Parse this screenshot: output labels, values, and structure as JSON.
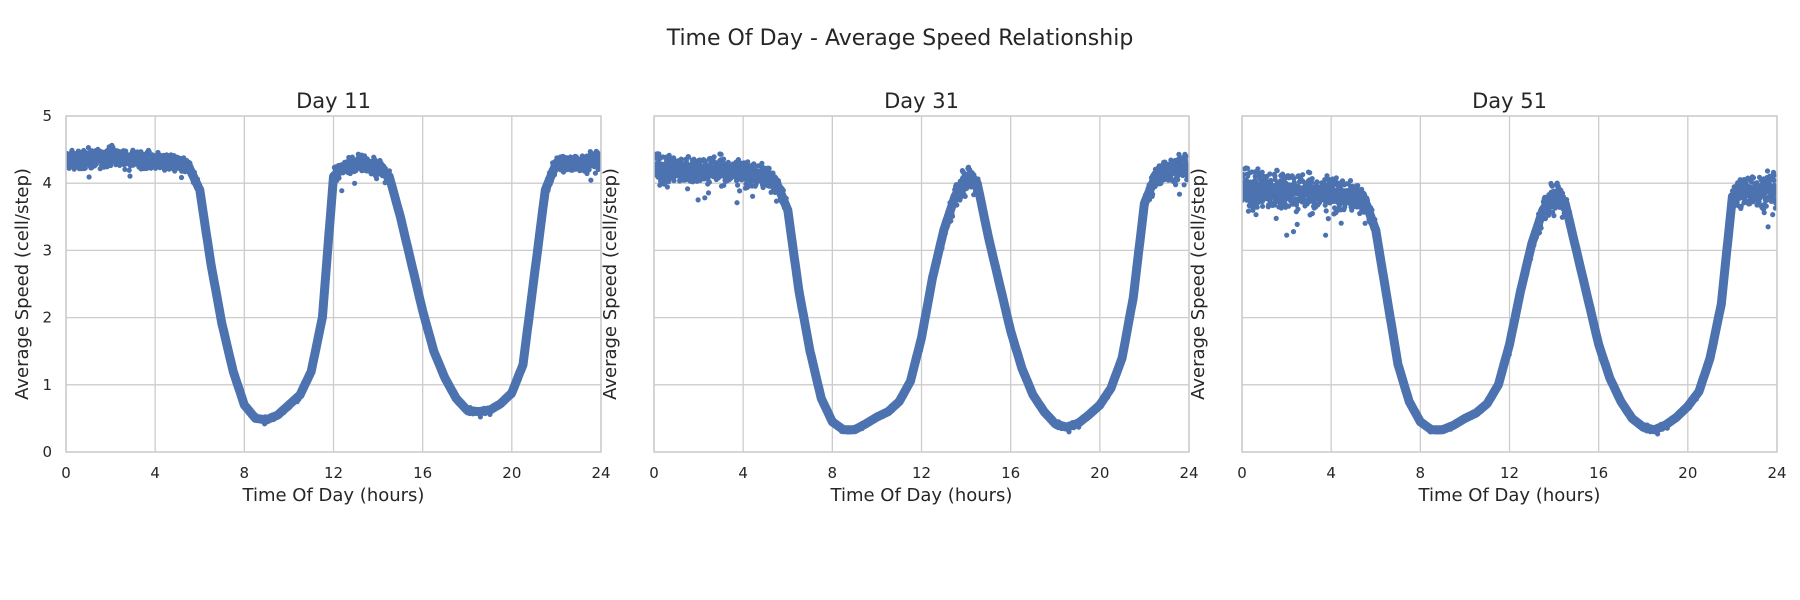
{
  "suptitle": "Time Of Day - Average Speed Relationship",
  "colors": {
    "series": "#4c72b0",
    "grid": "#cccccc",
    "text": "#262626",
    "background": "#ffffff"
  },
  "chart_data": [
    {
      "type": "scatter",
      "title": "Day 11",
      "xlabel": "Time Of Day (hours)",
      "ylabel": "Average Speed (cell/step)",
      "xlim": [
        0,
        24
      ],
      "ylim": [
        0,
        5
      ],
      "xticks": [
        "0",
        "4",
        "8",
        "12",
        "16",
        "20",
        "24"
      ],
      "yticks": [
        "0",
        "1",
        "2",
        "3",
        "4",
        "5"
      ],
      "show_ytick_labels": true,
      "grid": true,
      "series": [
        {
          "x": [
            0,
            1,
            2,
            3,
            4,
            5,
            5.5,
            6,
            6.5,
            7,
            7.5,
            8,
            8.5,
            9,
            9.5,
            10,
            10.5,
            11,
            11.5,
            12,
            12.5,
            13,
            14,
            14.5,
            15,
            15.5,
            16,
            16.5,
            17,
            17.5,
            18,
            18.5,
            19,
            19.5,
            20,
            20.5,
            21,
            21.5,
            22,
            23,
            24
          ],
          "y": [
            4.35,
            4.35,
            4.4,
            4.35,
            4.35,
            4.3,
            4.25,
            3.9,
            2.8,
            1.9,
            1.2,
            0.7,
            0.5,
            0.48,
            0.55,
            0.7,
            0.85,
            1.2,
            2.0,
            4.1,
            4.25,
            4.3,
            4.25,
            4.1,
            3.5,
            2.8,
            2.1,
            1.5,
            1.1,
            0.8,
            0.62,
            0.6,
            0.62,
            0.72,
            0.88,
            1.3,
            2.6,
            3.9,
            4.3,
            4.3,
            4.35
          ],
          "spread": [
            0.18,
            0.2,
            0.2,
            0.18,
            0.18,
            0.15,
            0.15,
            0.12,
            0.1,
            0.08,
            0.06,
            0.05,
            0.05,
            0.05,
            0.05,
            0.05,
            0.06,
            0.08,
            0.1,
            0.15,
            0.17,
            0.17,
            0.17,
            0.15,
            0.1,
            0.08,
            0.08,
            0.06,
            0.06,
            0.05,
            0.05,
            0.05,
            0.05,
            0.05,
            0.06,
            0.08,
            0.1,
            0.15,
            0.18,
            0.18,
            0.18
          ]
        }
      ]
    },
    {
      "type": "scatter",
      "title": "Day 31",
      "xlabel": "Time Of Day (hours)",
      "ylabel": "Average Speed (cell/step)",
      "xlim": [
        0,
        24
      ],
      "ylim": [
        0,
        5
      ],
      "xticks": [
        "0",
        "4",
        "8",
        "12",
        "16",
        "20",
        "24"
      ],
      "yticks": [
        "0",
        "1",
        "2",
        "3",
        "4",
        "5"
      ],
      "show_ytick_labels": false,
      "grid": true,
      "series": [
        {
          "x": [
            0,
            1,
            2,
            3,
            4,
            5,
            5.5,
            6,
            6.5,
            7,
            7.5,
            8,
            8.5,
            9,
            9.5,
            10,
            10.5,
            11,
            11.5,
            12,
            12.5,
            13,
            13.5,
            14,
            14.5,
            15,
            15.5,
            16,
            16.5,
            17,
            17.5,
            18,
            18.5,
            19,
            19.5,
            20,
            20.5,
            21,
            21.5,
            22,
            22.5,
            23,
            24
          ],
          "y": [
            4.2,
            4.2,
            4.2,
            4.2,
            4.15,
            4.1,
            4.0,
            3.6,
            2.4,
            1.5,
            0.8,
            0.45,
            0.33,
            0.33,
            0.42,
            0.52,
            0.6,
            0.75,
            1.05,
            1.7,
            2.6,
            3.3,
            3.8,
            4.1,
            4.0,
            3.2,
            2.5,
            1.8,
            1.25,
            0.85,
            0.6,
            0.42,
            0.37,
            0.42,
            0.55,
            0.7,
            0.95,
            1.4,
            2.3,
            3.7,
            4.1,
            4.2,
            4.25
          ],
          "spread": [
            0.3,
            0.3,
            0.3,
            0.3,
            0.25,
            0.25,
            0.2,
            0.15,
            0.1,
            0.08,
            0.06,
            0.05,
            0.05,
            0.05,
            0.05,
            0.05,
            0.05,
            0.06,
            0.08,
            0.1,
            0.15,
            0.2,
            0.25,
            0.25,
            0.2,
            0.1,
            0.08,
            0.08,
            0.06,
            0.05,
            0.05,
            0.05,
            0.05,
            0.05,
            0.05,
            0.05,
            0.06,
            0.08,
            0.1,
            0.2,
            0.25,
            0.25,
            0.25
          ]
        }
      ]
    },
    {
      "type": "scatter",
      "title": "Day 51",
      "xlabel": "Time Of Day (hours)",
      "ylabel": "Average Speed (cell/step)",
      "xlim": [
        0,
        24
      ],
      "ylim": [
        0,
        5
      ],
      "xticks": [
        "0",
        "4",
        "8",
        "12",
        "16",
        "20",
        "24"
      ],
      "yticks": [
        "0",
        "1",
        "2",
        "3",
        "4",
        "5"
      ],
      "show_ytick_labels": false,
      "grid": true,
      "series": [
        {
          "x": [
            0,
            1,
            2,
            3,
            4,
            5,
            5.5,
            6,
            6.5,
            7,
            7.5,
            8,
            8.5,
            9,
            9.5,
            10,
            10.5,
            11,
            11.5,
            12,
            12.5,
            13,
            13.5,
            14,
            14.5,
            15,
            15.5,
            16,
            16.5,
            17,
            17.5,
            18,
            18.5,
            19,
            19.5,
            20,
            20.5,
            21,
            21.5,
            22,
            22.5,
            23,
            24
          ],
          "y": [
            3.9,
            3.9,
            3.9,
            3.85,
            3.85,
            3.8,
            3.75,
            3.3,
            2.3,
            1.3,
            0.75,
            0.45,
            0.33,
            0.33,
            0.4,
            0.5,
            0.58,
            0.72,
            1.0,
            1.6,
            2.4,
            3.1,
            3.6,
            3.85,
            3.7,
            3.0,
            2.3,
            1.6,
            1.1,
            0.75,
            0.5,
            0.37,
            0.33,
            0.4,
            0.52,
            0.68,
            0.9,
            1.4,
            2.2,
            3.8,
            3.9,
            3.9,
            3.9
          ],
          "spread": [
            0.4,
            0.45,
            0.45,
            0.4,
            0.35,
            0.3,
            0.25,
            0.15,
            0.1,
            0.08,
            0.06,
            0.05,
            0.05,
            0.05,
            0.05,
            0.05,
            0.05,
            0.06,
            0.08,
            0.1,
            0.15,
            0.2,
            0.25,
            0.3,
            0.25,
            0.12,
            0.08,
            0.08,
            0.06,
            0.05,
            0.05,
            0.05,
            0.05,
            0.05,
            0.05,
            0.05,
            0.06,
            0.08,
            0.12,
            0.3,
            0.35,
            0.35,
            0.35
          ]
        }
      ]
    }
  ]
}
